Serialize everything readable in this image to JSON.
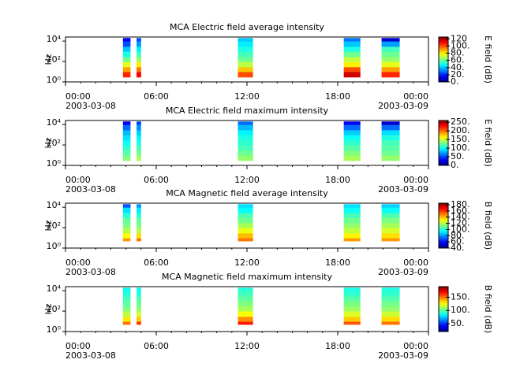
{
  "chart_data": [
    {
      "type": "spectrogram",
      "title": "MCA  Electric field average intensity",
      "ylabel": "Hz",
      "xlim": [
        0,
        24
      ],
      "xticks": [
        {
          "value": 0,
          "label": "00:00"
        },
        {
          "value": 6,
          "label": "06:00"
        },
        {
          "value": 12,
          "label": "12:00"
        },
        {
          "value": 18,
          "label": "18:00"
        },
        {
          "value": 24,
          "label": "00:00"
        }
      ],
      "xtick_dates": [
        "2003-03-08",
        null,
        null,
        null,
        "2003-03-09"
      ],
      "yscale": "log",
      "ylim": [
        1,
        25000
      ],
      "yticks": [
        {
          "value": 1,
          "label": "10⁰"
        },
        {
          "value": 100,
          "label": "10²"
        },
        {
          "value": 10000,
          "label": "10⁴"
        }
      ],
      "freq_edges": [
        3,
        10,
        30,
        100,
        300,
        1000,
        3000,
        10000,
        20000
      ],
      "segments": [
        {
          "start": 3.8,
          "end": 4.3,
          "values": [
            105,
            90,
            75,
            60,
            50,
            40,
            25,
            15
          ]
        },
        {
          "start": 4.7,
          "end": 5.0,
          "values": [
            110,
            95,
            80,
            65,
            55,
            45,
            35,
            25
          ]
        },
        {
          "start": 11.4,
          "end": 12.4,
          "values": [
            100,
            85,
            70,
            60,
            55,
            50,
            45,
            40
          ]
        },
        {
          "start": 18.4,
          "end": 19.5,
          "values": [
            115,
            100,
            80,
            70,
            60,
            50,
            40,
            30
          ]
        },
        {
          "start": 20.9,
          "end": 22.1,
          "values": [
            105,
            90,
            75,
            65,
            60,
            55,
            35,
            10
          ]
        }
      ],
      "clabel": "E field (dB)",
      "clim": [
        0,
        125
      ],
      "cticks": [
        {
          "value": 0,
          "label": "0."
        },
        {
          "value": 20,
          "label": "20."
        },
        {
          "value": 40,
          "label": "40."
        },
        {
          "value": 60,
          "label": "60."
        },
        {
          "value": 80,
          "label": "80."
        },
        {
          "value": 100,
          "label": "100."
        },
        120
      ]
    },
    {
      "type": "spectrogram",
      "title": "MCA  Electric field maximum intensity",
      "ylabel": "Hz",
      "xlim": [
        0,
        24
      ],
      "xticks": [
        {
          "value": 0,
          "label": "00:00"
        },
        {
          "value": 6,
          "label": "06:00"
        },
        {
          "value": 12,
          "label": "12:00"
        },
        {
          "value": 18,
          "label": "18:00"
        },
        {
          "value": 24,
          "label": "00:00"
        }
      ],
      "xtick_dates": [
        "2003-03-08",
        null,
        null,
        null,
        "2003-03-09"
      ],
      "yscale": "log",
      "ylim": [
        1,
        25000
      ],
      "yticks": [
        {
          "value": 1,
          "label": "10⁰"
        },
        {
          "value": 100,
          "label": "10²"
        },
        {
          "value": 10000,
          "label": "10⁴"
        }
      ],
      "freq_edges": [
        3,
        10,
        30,
        100,
        300,
        1000,
        3000,
        10000,
        20000
      ],
      "segments": [
        {
          "start": 3.8,
          "end": 4.3,
          "values": [
            130,
            120,
            110,
            100,
            90,
            80,
            60,
            30
          ]
        },
        {
          "start": 4.7,
          "end": 5.0,
          "values": [
            140,
            125,
            115,
            105,
            95,
            85,
            70,
            50
          ]
        },
        {
          "start": 11.4,
          "end": 12.4,
          "values": [
            135,
            125,
            115,
            110,
            105,
            95,
            80,
            60
          ]
        },
        {
          "start": 18.4,
          "end": 19.5,
          "values": [
            140,
            130,
            120,
            110,
            100,
            85,
            60,
            30
          ]
        },
        {
          "start": 20.9,
          "end": 22.1,
          "values": [
            135,
            125,
            120,
            115,
            105,
            90,
            60,
            20
          ]
        }
      ],
      "clabel": "E field (dB)",
      "clim": [
        0,
        260
      ],
      "cticks": [
        {
          "value": 0,
          "label": "0."
        },
        {
          "value": 50,
          "label": "50."
        },
        {
          "value": 100,
          "label": "100."
        },
        {
          "value": 150,
          "label": "150."
        },
        {
          "value": 200,
          "label": "200."
        },
        {
          "value": 250,
          "label": "250."
        }
      ]
    },
    {
      "type": "spectrogram",
      "title": "MCA  Magnetic field average intensity",
      "ylabel": "Hz",
      "xlim": [
        0,
        24
      ],
      "xticks": [
        {
          "value": 0,
          "label": "00:00"
        },
        {
          "value": 6,
          "label": "06:00"
        },
        {
          "value": 12,
          "label": "12:00"
        },
        {
          "value": 18,
          "label": "18:00"
        },
        {
          "value": 24,
          "label": "00:00"
        }
      ],
      "xtick_dates": [
        "2003-03-08",
        null,
        null,
        null,
        "2003-03-09"
      ],
      "yscale": "log",
      "ylim": [
        1,
        25000
      ],
      "yticks": [
        {
          "value": 1,
          "label": "10⁰"
        },
        {
          "value": 100,
          "label": "10²"
        },
        {
          "value": 10000,
          "label": "10⁴"
        }
      ],
      "freq_edges": [
        5,
        10,
        30,
        100,
        300,
        1000,
        3000,
        10000,
        20000
      ],
      "segments": [
        {
          "start": 3.8,
          "end": 4.3,
          "values": [
            145,
            130,
            120,
            112,
            108,
            100,
            90,
            70
          ]
        },
        {
          "start": 4.7,
          "end": 5.0,
          "values": [
            150,
            135,
            120,
            112,
            108,
            100,
            92,
            80
          ]
        },
        {
          "start": 11.4,
          "end": 12.4,
          "values": [
            150,
            140,
            128,
            118,
            110,
            105,
            95,
            90
          ]
        },
        {
          "start": 18.4,
          "end": 19.5,
          "values": [
            145,
            132,
            122,
            115,
            110,
            104,
            96,
            90
          ]
        },
        {
          "start": 20.9,
          "end": 22.1,
          "values": [
            145,
            135,
            125,
            118,
            112,
            105,
            95,
            88
          ]
        }
      ],
      "clabel": "B field (dB)",
      "clim": [
        40,
        185
      ],
      "cticks": [
        {
          "value": 40,
          "label": "40."
        },
        {
          "value": 60,
          "label": "60."
        },
        {
          "value": 80,
          "label": "80."
        },
        {
          "value": 100,
          "label": "100."
        },
        {
          "value": 120,
          "label": "120."
        },
        {
          "value": 140,
          "label": "140."
        },
        {
          "value": 160,
          "label": "160."
        },
        {
          "value": 180,
          "label": "180."
        }
      ]
    },
    {
      "type": "spectrogram",
      "title": "MCA  Magnetic field maximum intensity",
      "ylabel": "Hz",
      "xlim": [
        0,
        24
      ],
      "xticks": [
        {
          "value": 0,
          "label": "00:00"
        },
        {
          "value": 6,
          "label": "06:00"
        },
        {
          "value": 12,
          "label": "12:00"
        },
        {
          "value": 18,
          "label": "18:00"
        },
        {
          "value": 24,
          "label": "00:00"
        }
      ],
      "xtick_dates": [
        "2003-03-08",
        null,
        null,
        null,
        "2003-03-09"
      ],
      "yscale": "log",
      "ylim": [
        1,
        25000
      ],
      "yticks": [
        {
          "value": 1,
          "label": "10⁰"
        },
        {
          "value": 100,
          "label": "10²"
        },
        {
          "value": 10000,
          "label": "10⁴"
        }
      ],
      "freq_edges": [
        5,
        10,
        30,
        100,
        300,
        1000,
        3000,
        10000,
        20000
      ],
      "segments": [
        {
          "start": 3.8,
          "end": 4.3,
          "values": [
            150,
            130,
            115,
            105,
            100,
            95,
            90,
            85
          ]
        },
        {
          "start": 4.7,
          "end": 5.0,
          "values": [
            160,
            135,
            118,
            108,
            102,
            96,
            90,
            85
          ]
        },
        {
          "start": 11.4,
          "end": 12.4,
          "values": [
            165,
            145,
            125,
            112,
            105,
            100,
            95,
            90
          ]
        },
        {
          "start": 18.4,
          "end": 19.5,
          "values": [
            155,
            135,
            120,
            110,
            104,
            98,
            92,
            88
          ]
        },
        {
          "start": 20.9,
          "end": 22.1,
          "values": [
            150,
            132,
            118,
            108,
            103,
            97,
            92,
            88
          ]
        }
      ],
      "clabel": "B field (dB)",
      "clim": [
        20,
        190
      ],
      "cticks": [
        {
          "value": 50,
          "label": "50."
        },
        {
          "value": 100,
          "label": "100."
        },
        {
          "value": 150,
          "label": "150."
        }
      ]
    }
  ]
}
